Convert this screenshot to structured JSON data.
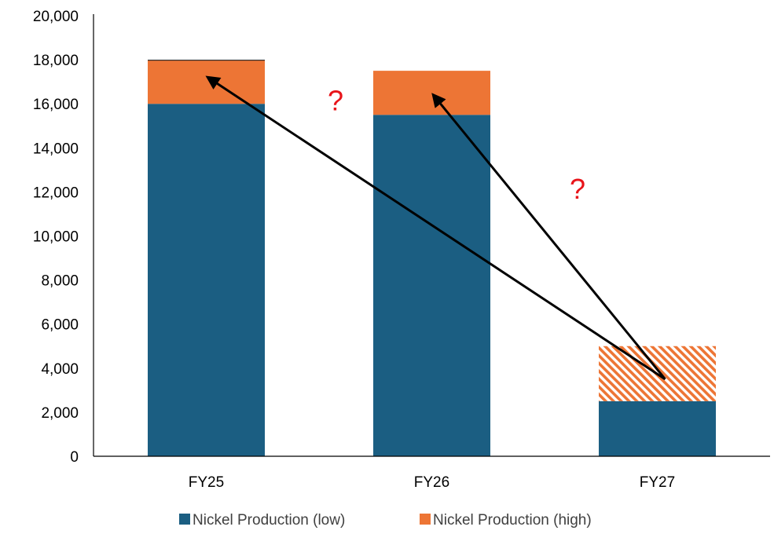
{
  "chart_data": {
    "type": "bar",
    "stacked": true,
    "categories": [
      "FY25",
      "FY26",
      "FY27"
    ],
    "series": [
      {
        "name": "Nickel Production (low)",
        "values": [
          16000,
          15500,
          2500
        ],
        "color": "#1b5e82"
      },
      {
        "name": "Nickel Production (high)",
        "values": [
          2000,
          2000,
          2500
        ],
        "color": "#ed7535",
        "hatched_categories": [
          "FY27"
        ]
      }
    ],
    "ylim": [
      0,
      20000
    ],
    "y_ticks": [
      0,
      2000,
      4000,
      6000,
      8000,
      10000,
      12000,
      14000,
      16000,
      18000,
      20000
    ],
    "y_tick_labels": [
      "0",
      "2,000",
      "4,000",
      "6,000",
      "8,000",
      "10,000",
      "12,000",
      "14,000",
      "16,000",
      "18,000",
      "20,000"
    ],
    "grid": false,
    "legend_position": "bottom",
    "annotations": [
      {
        "type": "text",
        "text": "?",
        "color": "#e8141a",
        "near": "between FY25 and FY26",
        "y": 15700
      },
      {
        "type": "text",
        "text": "?",
        "color": "#e8141a",
        "near": "between FY26 and FY27",
        "y": 11700
      },
      {
        "type": "arrow",
        "from_category": "FY27",
        "from_y": 3500,
        "to_category": "FY25",
        "to_y": 17200
      },
      {
        "type": "arrow",
        "from_category": "FY27",
        "from_y": 3500,
        "to_category": "FY26",
        "to_y": 16400
      }
    ]
  }
}
